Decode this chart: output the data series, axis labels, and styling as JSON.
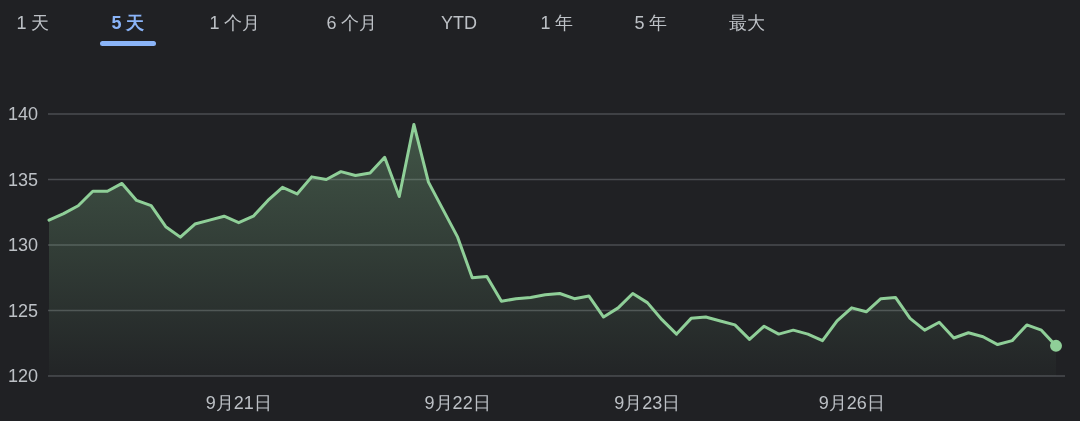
{
  "chart_data": {
    "type": "area",
    "annotations": [
      "1 天",
      "5 天",
      "1 个月",
      "6 个月",
      "YTD",
      "1 年",
      "5 年",
      "最大"
    ],
    "categories": [
      null,
      null,
      null,
      null,
      null,
      null,
      null,
      null,
      null,
      null,
      null,
      null,
      null,
      "9月21日",
      null,
      null,
      null,
      null,
      null,
      null,
      null,
      null,
      null,
      null,
      null,
      null,
      null,
      null,
      "9月22日",
      null,
      null,
      null,
      null,
      null,
      null,
      null,
      null,
      null,
      null,
      null,
      null,
      "9月23日",
      null,
      null,
      null,
      null,
      null,
      null,
      null,
      null,
      null,
      null,
      null,
      null,
      null,
      "9月26日",
      null,
      null,
      null,
      null,
      null,
      null,
      null,
      null,
      null,
      null,
      null,
      null,
      null,
      null
    ],
    "series": [
      {
        "color": "#8fcf98",
        "values": [
          131.9,
          132.4,
          133.0,
          134.1,
          134.1,
          134.7,
          133.4,
          133.0,
          131.4,
          130.6,
          131.6,
          131.9,
          132.2,
          131.7,
          132.2,
          133.4,
          134.4,
          133.9,
          135.2,
          135.0,
          135.6,
          135.3,
          135.5,
          136.7,
          133.7,
          139.2,
          134.8,
          132.7,
          130.6,
          127.5,
          127.6,
          125.7,
          125.9,
          126.0,
          126.2,
          126.3,
          125.9,
          126.1,
          124.5,
          125.2,
          126.3,
          125.6,
          124.3,
          123.2,
          124.4,
          124.5,
          124.2,
          123.9,
          122.8,
          123.8,
          123.2,
          123.5,
          123.2,
          122.7,
          124.2,
          125.2,
          124.9,
          125.9,
          126.0,
          124.4,
          123.5,
          124.1,
          122.9,
          123.3,
          123.0,
          122.4,
          122.7,
          123.9,
          123.5,
          122.3
        ]
      }
    ],
    "ylim": [
      120,
      140
    ],
    "yticks": [
      120,
      125,
      130,
      135,
      140
    ],
    "grid": "y"
  }
}
